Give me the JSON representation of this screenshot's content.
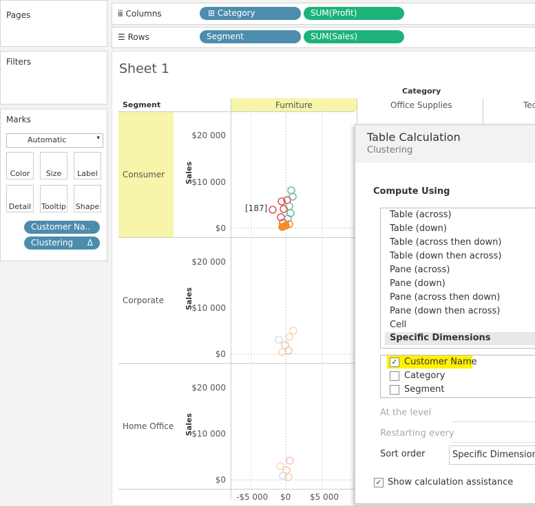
{
  "side": {
    "pages": "Pages",
    "filters": "Filters",
    "marks": "Marks",
    "mark_type": "Automatic",
    "buttons": [
      "Color",
      "Size",
      "Label",
      "Detail",
      "Tooltip",
      "Shape"
    ],
    "pills": [
      "Customer Na..",
      "Clustering"
    ],
    "delta": "Δ"
  },
  "shelves": {
    "columns": "Columns",
    "rows": "Rows",
    "column_pills": [
      "Category",
      "SUM(Profit)"
    ],
    "row_pills": [
      "Segment",
      "SUM(Sales)"
    ]
  },
  "sheet": {
    "title": "Sheet 1",
    "column_header": "Category",
    "row_header": "Segment",
    "categories": [
      "Furniture",
      "Office Supplies",
      "Tec"
    ],
    "segments": [
      "Consumer",
      "Corporate",
      "Home Office"
    ],
    "axis_label": "Sales",
    "yticks": [
      "$20 000",
      "$10 000",
      "$0"
    ],
    "xticks": [
      "-$5 000",
      "$0",
      "$5 000"
    ],
    "annotation": "[187]"
  },
  "dialog": {
    "title": "Table Calculation",
    "subtitle": "Clustering",
    "compute_using": "Compute Using",
    "options": [
      "Table (across)",
      "Table (down)",
      "Table (across then down)",
      "Table (down then across)",
      "Pane (across)",
      "Pane (down)",
      "Pane (across then down)",
      "Pane (down then across)",
      "Cell",
      "Specific Dimensions"
    ],
    "dimensions": [
      "Customer Name",
      "Category",
      "Segment"
    ],
    "at_level": "At the level",
    "restarting": "Restarting every",
    "sort_order": "Sort order",
    "sort_value": "Specific Dimensions",
    "assist": "Show calculation assistance"
  }
}
